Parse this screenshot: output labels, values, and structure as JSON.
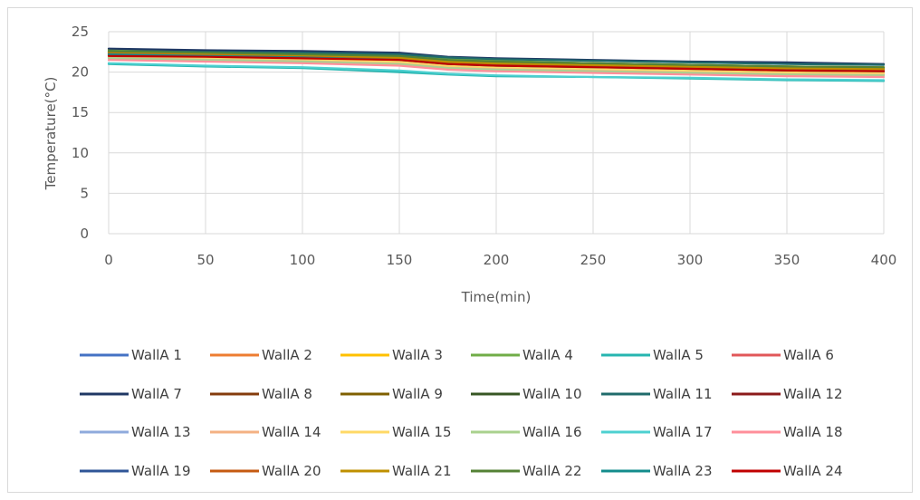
{
  "chart_data": {
    "type": "line",
    "title": "",
    "xlabel": "Time(min)",
    "ylabel": "Temperature(°C)",
    "xlim": [
      0,
      400
    ],
    "ylim": [
      0,
      25
    ],
    "x_ticks": [
      0,
      50,
      100,
      150,
      200,
      250,
      300,
      350,
      400
    ],
    "y_ticks": [
      0,
      5,
      10,
      15,
      20,
      25
    ],
    "grid": true,
    "legend_position": "bottom",
    "x": [
      0,
      50,
      100,
      150,
      175,
      200,
      250,
      300,
      350,
      400
    ],
    "series": [
      {
        "name": "WallA 1",
        "color": "#4472C4",
        "values": [
          22.3,
          22.1,
          21.9,
          21.6,
          21.1,
          20.9,
          20.7,
          20.5,
          20.3,
          20.2
        ]
      },
      {
        "name": "WallA 2",
        "color": "#ED7D31",
        "values": [
          22.6,
          22.3,
          22.1,
          21.8,
          21.3,
          21.1,
          20.9,
          20.7,
          20.5,
          20.4
        ]
      },
      {
        "name": "WallA 3",
        "color": "#FFC000",
        "values": [
          22.8,
          22.5,
          22.3,
          22.0,
          21.5,
          21.3,
          21.1,
          20.9,
          20.7,
          20.6
        ]
      },
      {
        "name": "WallA 4",
        "color": "#70AD47",
        "values": [
          22.7,
          22.5,
          22.4,
          22.2,
          21.6,
          21.4,
          21.1,
          20.9,
          20.7,
          20.5
        ]
      },
      {
        "name": "WallA 5",
        "color": "#26B5B0",
        "values": [
          21.0,
          20.7,
          20.5,
          20.0,
          19.7,
          19.5,
          19.4,
          19.2,
          19.0,
          18.9
        ]
      },
      {
        "name": "WallA 6",
        "color": "#E15759",
        "values": [
          22.0,
          21.8,
          21.6,
          21.3,
          20.8,
          20.6,
          20.4,
          20.2,
          20.0,
          19.9
        ]
      },
      {
        "name": "WallA 7",
        "color": "#1F3864",
        "values": [
          22.9,
          22.7,
          22.6,
          22.4,
          21.9,
          21.7,
          21.5,
          21.3,
          21.2,
          21.0
        ]
      },
      {
        "name": "WallA 8",
        "color": "#843C0C",
        "values": [
          22.2,
          22.0,
          21.8,
          21.5,
          21.0,
          20.8,
          20.6,
          20.4,
          20.2,
          20.1
        ]
      },
      {
        "name": "WallA 9",
        "color": "#7F6000",
        "values": [
          22.4,
          22.2,
          22.0,
          21.7,
          21.2,
          21.0,
          20.8,
          20.6,
          20.4,
          20.3
        ]
      },
      {
        "name": "WallA 10",
        "color": "#375623",
        "values": [
          22.5,
          22.3,
          22.1,
          21.9,
          21.4,
          21.2,
          21.0,
          20.8,
          20.6,
          20.5
        ]
      },
      {
        "name": "WallA 11",
        "color": "#1F6B6B",
        "values": [
          22.6,
          22.5,
          22.4,
          22.2,
          21.8,
          21.6,
          21.4,
          21.2,
          21.0,
          20.9
        ]
      },
      {
        "name": "WallA 12",
        "color": "#8B1A1A",
        "values": [
          22.1,
          21.9,
          21.7,
          21.4,
          20.9,
          20.7,
          20.5,
          20.3,
          20.1,
          20.0
        ]
      },
      {
        "name": "WallA 13",
        "color": "#8FAADC",
        "values": [
          21.8,
          21.6,
          21.4,
          21.1,
          20.6,
          20.4,
          20.2,
          20.0,
          19.8,
          19.7
        ]
      },
      {
        "name": "WallA 14",
        "color": "#F4B183",
        "values": [
          21.9,
          21.7,
          21.5,
          21.2,
          20.7,
          20.5,
          20.3,
          20.1,
          19.9,
          19.8
        ]
      },
      {
        "name": "WallA 15",
        "color": "#FFD966",
        "values": [
          22.0,
          21.8,
          21.6,
          21.3,
          20.8,
          20.6,
          20.4,
          20.2,
          20.0,
          19.9
        ]
      },
      {
        "name": "WallA 16",
        "color": "#A9D18E",
        "values": [
          21.7,
          21.5,
          21.3,
          21.0,
          20.5,
          20.3,
          20.1,
          19.9,
          19.7,
          19.6
        ]
      },
      {
        "name": "WallA 17",
        "color": "#4DD0D0",
        "values": [
          21.1,
          20.8,
          20.6,
          20.2,
          19.8,
          19.6,
          19.4,
          19.3,
          19.1,
          19.0
        ]
      },
      {
        "name": "WallA 18",
        "color": "#FF8F9A",
        "values": [
          21.5,
          21.3,
          21.1,
          20.8,
          20.3,
          20.1,
          19.9,
          19.7,
          19.5,
          19.4
        ]
      },
      {
        "name": "WallA 19",
        "color": "#2F5597",
        "values": [
          22.4,
          22.2,
          22.0,
          21.7,
          21.2,
          21.0,
          20.8,
          20.6,
          20.4,
          20.3
        ]
      },
      {
        "name": "WallA 20",
        "color": "#C55A11",
        "values": [
          22.3,
          22.1,
          21.9,
          21.6,
          21.1,
          20.9,
          20.7,
          20.5,
          20.3,
          20.2
        ]
      },
      {
        "name": "WallA 21",
        "color": "#BF9000",
        "values": [
          22.5,
          22.3,
          22.1,
          21.8,
          21.3,
          21.1,
          20.9,
          20.7,
          20.5,
          20.4
        ]
      },
      {
        "name": "WallA 22",
        "color": "#548235",
        "values": [
          22.6,
          22.4,
          22.2,
          22.0,
          21.5,
          21.3,
          21.1,
          20.9,
          20.7,
          20.6
        ]
      },
      {
        "name": "WallA 23",
        "color": "#138C8C",
        "values": [
          22.2,
          22.0,
          21.8,
          21.5,
          21.0,
          20.8,
          20.6,
          20.4,
          20.2,
          20.1
        ]
      },
      {
        "name": "WallA 24",
        "color": "#C00000",
        "values": [
          22.0,
          21.9,
          21.7,
          21.5,
          21.0,
          20.8,
          20.6,
          20.4,
          20.2,
          20.1
        ]
      }
    ]
  }
}
